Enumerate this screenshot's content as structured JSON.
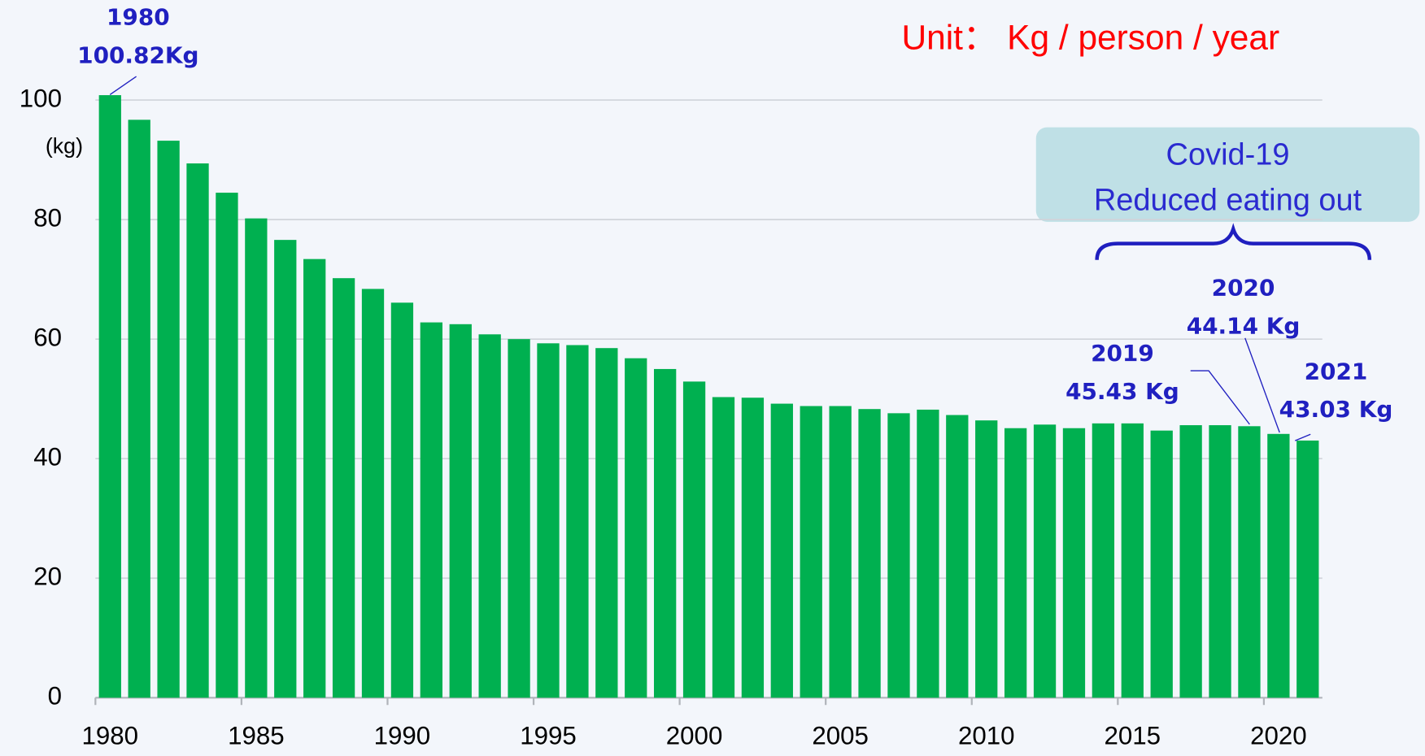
{
  "chart_data": {
    "type": "bar",
    "unit_note": "Unit： Kg / person / year",
    "y_label": "(kg)",
    "callout": [
      "Covid-19",
      "Reduced eating out"
    ],
    "categories": [
      "1980",
      null,
      null,
      null,
      null,
      "1985",
      null,
      null,
      null,
      null,
      "1990",
      null,
      null,
      null,
      null,
      "1995",
      null,
      null,
      null,
      null,
      "2000",
      null,
      null,
      null,
      null,
      "2005",
      null,
      null,
      null,
      null,
      "2010",
      null,
      null,
      null,
      null,
      "2015",
      null,
      null,
      null,
      null,
      "2020",
      null
    ],
    "values": [
      100.82,
      96.7,
      93.2,
      89.4,
      84.5,
      80.2,
      76.6,
      73.4,
      70.2,
      68.4,
      66.1,
      62.8,
      62.5,
      60.8,
      60.0,
      59.3,
      59.0,
      58.5,
      56.8,
      55.0,
      52.9,
      50.3,
      50.2,
      49.2,
      48.8,
      48.8,
      48.3,
      47.6,
      48.2,
      47.3,
      46.4,
      45.1,
      45.7,
      45.1,
      45.9,
      45.9,
      44.7,
      45.6,
      45.6,
      45.43,
      44.14,
      43.03
    ],
    "value_labels": [
      "100.82Kg",
      null,
      null,
      null,
      null,
      null,
      null,
      null,
      null,
      null,
      null,
      null,
      null,
      null,
      null,
      null,
      null,
      null,
      null,
      null,
      null,
      null,
      null,
      null,
      null,
      null,
      null,
      null,
      null,
      null,
      null,
      null,
      null,
      null,
      null,
      null,
      null,
      null,
      null,
      "45.43 Kg",
      "44.14 Kg",
      "43.03 Kg"
    ],
    "annotations": [
      "1980",
      "2019",
      "2020",
      "2021"
    ],
    "color": "#00b050",
    "ylim": [
      0,
      100
    ],
    "yticks": [
      0,
      20,
      40,
      60,
      80,
      100
    ],
    "grid": true
  }
}
